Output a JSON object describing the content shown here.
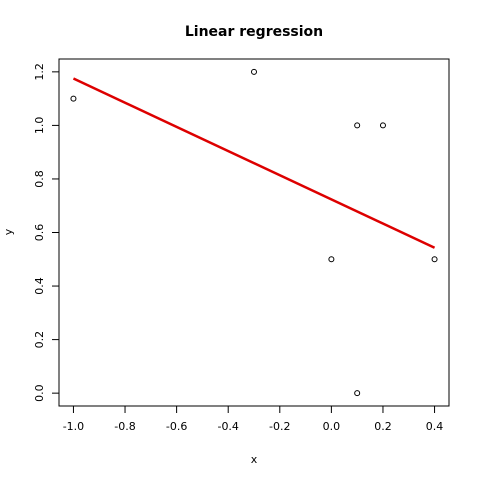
{
  "chart_data": {
    "type": "scatter",
    "title": "Linear regression",
    "xlabel": "x",
    "ylabel": "y",
    "xlim": [
      -1.056,
      0.456
    ],
    "ylim": [
      -0.048,
      1.248
    ],
    "xticks": [
      -1.0,
      -0.8,
      -0.6,
      -0.4,
      -0.2,
      0.0,
      0.2,
      0.4
    ],
    "xtick_labels": [
      "-1.0",
      "-0.8",
      "-0.6",
      "-0.4",
      "-0.2",
      "0.0",
      "0.2",
      "0.4"
    ],
    "yticks": [
      0.0,
      0.2,
      0.4,
      0.6,
      0.8,
      1.0,
      1.2
    ],
    "ytick_labels": [
      "0.0",
      "0.2",
      "0.4",
      "0.6",
      "0.8",
      "1.0",
      "1.2"
    ],
    "points": [
      {
        "x": -1.0,
        "y": 1.1
      },
      {
        "x": -0.3,
        "y": 1.2
      },
      {
        "x": 0.0,
        "y": 0.5
      },
      {
        "x": 0.1,
        "y": 1.0
      },
      {
        "x": 0.1,
        "y": 0.0
      },
      {
        "x": 0.2,
        "y": 1.0
      },
      {
        "x": 0.4,
        "y": 0.5
      }
    ],
    "regression_line": {
      "x": [
        -1.0,
        0.4
      ],
      "y": [
        1.175,
        0.543
      ]
    },
    "grid": false,
    "legend": "none",
    "colors": {
      "points": "#000000",
      "line": "#dd0000",
      "axes": "#000000"
    }
  }
}
